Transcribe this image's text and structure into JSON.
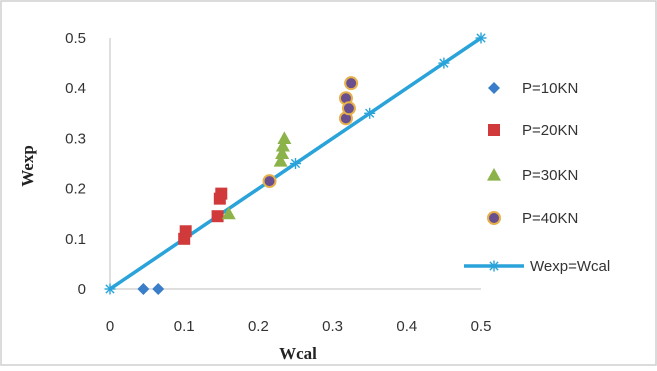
{
  "chart_data": {
    "type": "scatter",
    "xlabel": "Wcal",
    "ylabel": "Wexp",
    "xlim": [
      0,
      0.5
    ],
    "ylim": [
      0,
      0.5
    ],
    "x_ticks": [
      "0",
      "0.1",
      "0.2",
      "0.3",
      "0.4",
      "0.5"
    ],
    "y_ticks": [
      "0",
      "0.1",
      "0.2",
      "0.3",
      "0.4",
      "0.5"
    ],
    "grid": false,
    "legend_position": "right",
    "series": [
      {
        "name": "P=10KN",
        "marker": "diamond",
        "color": "#3a7dc9",
        "points": [
          [
            0.045,
            0.0
          ],
          [
            0.065,
            0.0
          ]
        ]
      },
      {
        "name": "P=20KN",
        "marker": "square",
        "color": "#d03a3a",
        "points": [
          [
            0.1,
            0.1
          ],
          [
            0.102,
            0.115
          ],
          [
            0.145,
            0.145
          ],
          [
            0.148,
            0.18
          ],
          [
            0.15,
            0.19
          ]
        ]
      },
      {
        "name": "P=30KN",
        "marker": "triangle",
        "color": "#8cb24a",
        "points": [
          [
            0.16,
            0.15
          ],
          [
            0.23,
            0.255
          ],
          [
            0.232,
            0.27
          ],
          [
            0.233,
            0.285
          ],
          [
            0.235,
            0.3
          ]
        ]
      },
      {
        "name": "P=40KN",
        "marker": "circle",
        "color": "#6a4f8e",
        "edge_color": "#e6b04a",
        "points": [
          [
            0.215,
            0.215
          ],
          [
            0.318,
            0.34
          ],
          [
            0.318,
            0.38
          ],
          [
            0.322,
            0.36
          ],
          [
            0.325,
            0.41
          ]
        ]
      },
      {
        "name": "Wexp=Wcal",
        "marker": "star",
        "line": true,
        "color": "#29a3d9",
        "points": [
          [
            0,
            0
          ],
          [
            0.25,
            0.25
          ],
          [
            0.35,
            0.35
          ],
          [
            0.45,
            0.45
          ],
          [
            0.5,
            0.5
          ]
        ]
      }
    ]
  }
}
